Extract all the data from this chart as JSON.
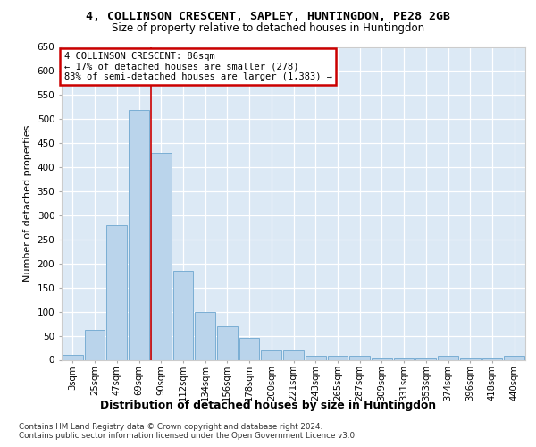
{
  "title": "4, COLLINSON CRESCENT, SAPLEY, HUNTINGDON, PE28 2GB",
  "subtitle": "Size of property relative to detached houses in Huntingdon",
  "xlabel": "Distribution of detached houses by size in Huntingdon",
  "ylabel": "Number of detached properties",
  "footer_line1": "Contains HM Land Registry data © Crown copyright and database right 2024.",
  "footer_line2": "Contains public sector information licensed under the Open Government Licence v3.0.",
  "bar_labels": [
    "3sqm",
    "25sqm",
    "47sqm",
    "69sqm",
    "90sqm",
    "112sqm",
    "134sqm",
    "156sqm",
    "178sqm",
    "200sqm",
    "221sqm",
    "243sqm",
    "265sqm",
    "287sqm",
    "309sqm",
    "331sqm",
    "353sqm",
    "374sqm",
    "396sqm",
    "418sqm",
    "440sqm"
  ],
  "bar_values": [
    10,
    62,
    280,
    520,
    430,
    185,
    100,
    70,
    45,
    20,
    20,
    8,
    8,
    8,
    2,
    2,
    2,
    8,
    2,
    2,
    8
  ],
  "bar_color": "#bad4eb",
  "bar_edge_color": "#7aaed4",
  "background_color": "#ffffff",
  "plot_bg_color": "#dce9f5",
  "grid_color": "#ffffff",
  "annotation_box_text": "4 COLLINSON CRESCENT: 86sqm\n← 17% of detached houses are smaller (278)\n83% of semi-detached houses are larger (1,383) →",
  "red_line_x": 3.55,
  "annotation_box_color": "#ffffff",
  "annotation_box_edge_color": "#cc0000",
  "ylim": [
    0,
    650
  ],
  "yticks": [
    0,
    50,
    100,
    150,
    200,
    250,
    300,
    350,
    400,
    450,
    500,
    550,
    600,
    650
  ]
}
